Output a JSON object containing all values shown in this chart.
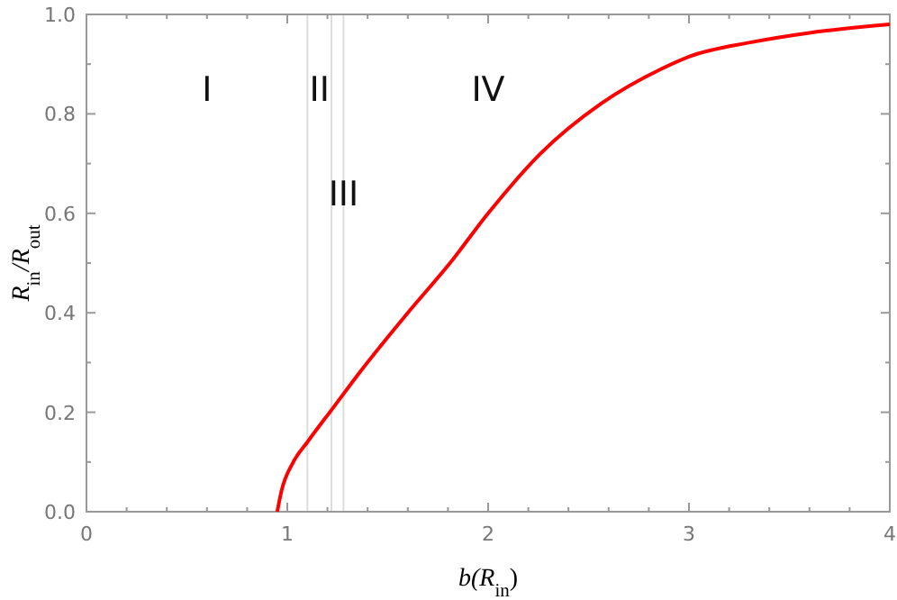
{
  "chart_data": {
    "type": "line",
    "xlabel": "b(R$_{in}$)",
    "ylabel": "R$_{in}$/R$_{out}$",
    "xlim": [
      0,
      4
    ],
    "ylim": [
      0,
      1
    ],
    "xticks": [
      0,
      {
        "value": 0.2,
        "label": null
      },
      {
        "value": 0.4,
        "label": null
      },
      {
        "value": 0.6,
        "label": null
      },
      {
        "value": 0.8,
        "label": null
      },
      1,
      {
        "value": 1.2,
        "label": null
      },
      {
        "value": 1.4,
        "label": null
      },
      {
        "value": 1.6,
        "label": null
      },
      {
        "value": 1.8,
        "label": null
      },
      2,
      {
        "value": 2.2,
        "label": null
      },
      {
        "value": 2.4,
        "label": null
      },
      {
        "value": 2.6,
        "label": null
      },
      {
        "value": 2.8,
        "label": null
      },
      3,
      {
        "value": 3.2,
        "label": null
      },
      {
        "value": 3.4,
        "label": null
      },
      {
        "value": 3.6,
        "label": null
      },
      {
        "value": 3.8,
        "label": null
      },
      4
    ],
    "yticks": [
      {
        "value": 0,
        "label": "0.0"
      },
      {
        "value": 0.1,
        "label": null
      },
      {
        "value": 0.2,
        "label": "0.2"
      },
      {
        "value": 0.3,
        "label": null
      },
      {
        "value": 0.4,
        "label": "0.4"
      },
      {
        "value": 0.5,
        "label": null
      },
      {
        "value": 0.6,
        "label": "0.6"
      },
      {
        "value": 0.7,
        "label": null
      },
      {
        "value": 0.8,
        "label": "0.8"
      },
      {
        "value": 0.9,
        "label": null
      },
      {
        "value": 1,
        "label": "1.0"
      }
    ],
    "grid": false,
    "line_style": "solid",
    "marker": "none",
    "series": [
      {
        "color": "#ff0000",
        "x": [
          0.95,
          0.97,
          1.03,
          1.1,
          1.23,
          1.36,
          1.6,
          1.81,
          2.0,
          2.26,
          2.56,
          2.86,
          3.0,
          3.31,
          3.6,
          4.0
        ],
        "values": [
          0,
          0.04,
          0.1,
          0.14,
          0.21,
          0.28,
          0.4,
          0.5,
          0.6,
          0.72,
          0.82,
          0.89,
          0.915,
          0.944,
          0.963,
          0.98
        ]
      }
    ],
    "ref_lines": [
      {
        "axis": "x",
        "value": 1.1,
        "color": "#dddddd"
      },
      {
        "axis": "x",
        "value": 1.22,
        "color": "#dddddd"
      },
      {
        "axis": "x",
        "value": 1.28,
        "color": "#dddddd"
      }
    ],
    "annotations": [
      "I",
      "II",
      {
        "text": "III",
        "x": 1.28,
        "y": 0.64
      },
      "IV"
    ]
  }
}
